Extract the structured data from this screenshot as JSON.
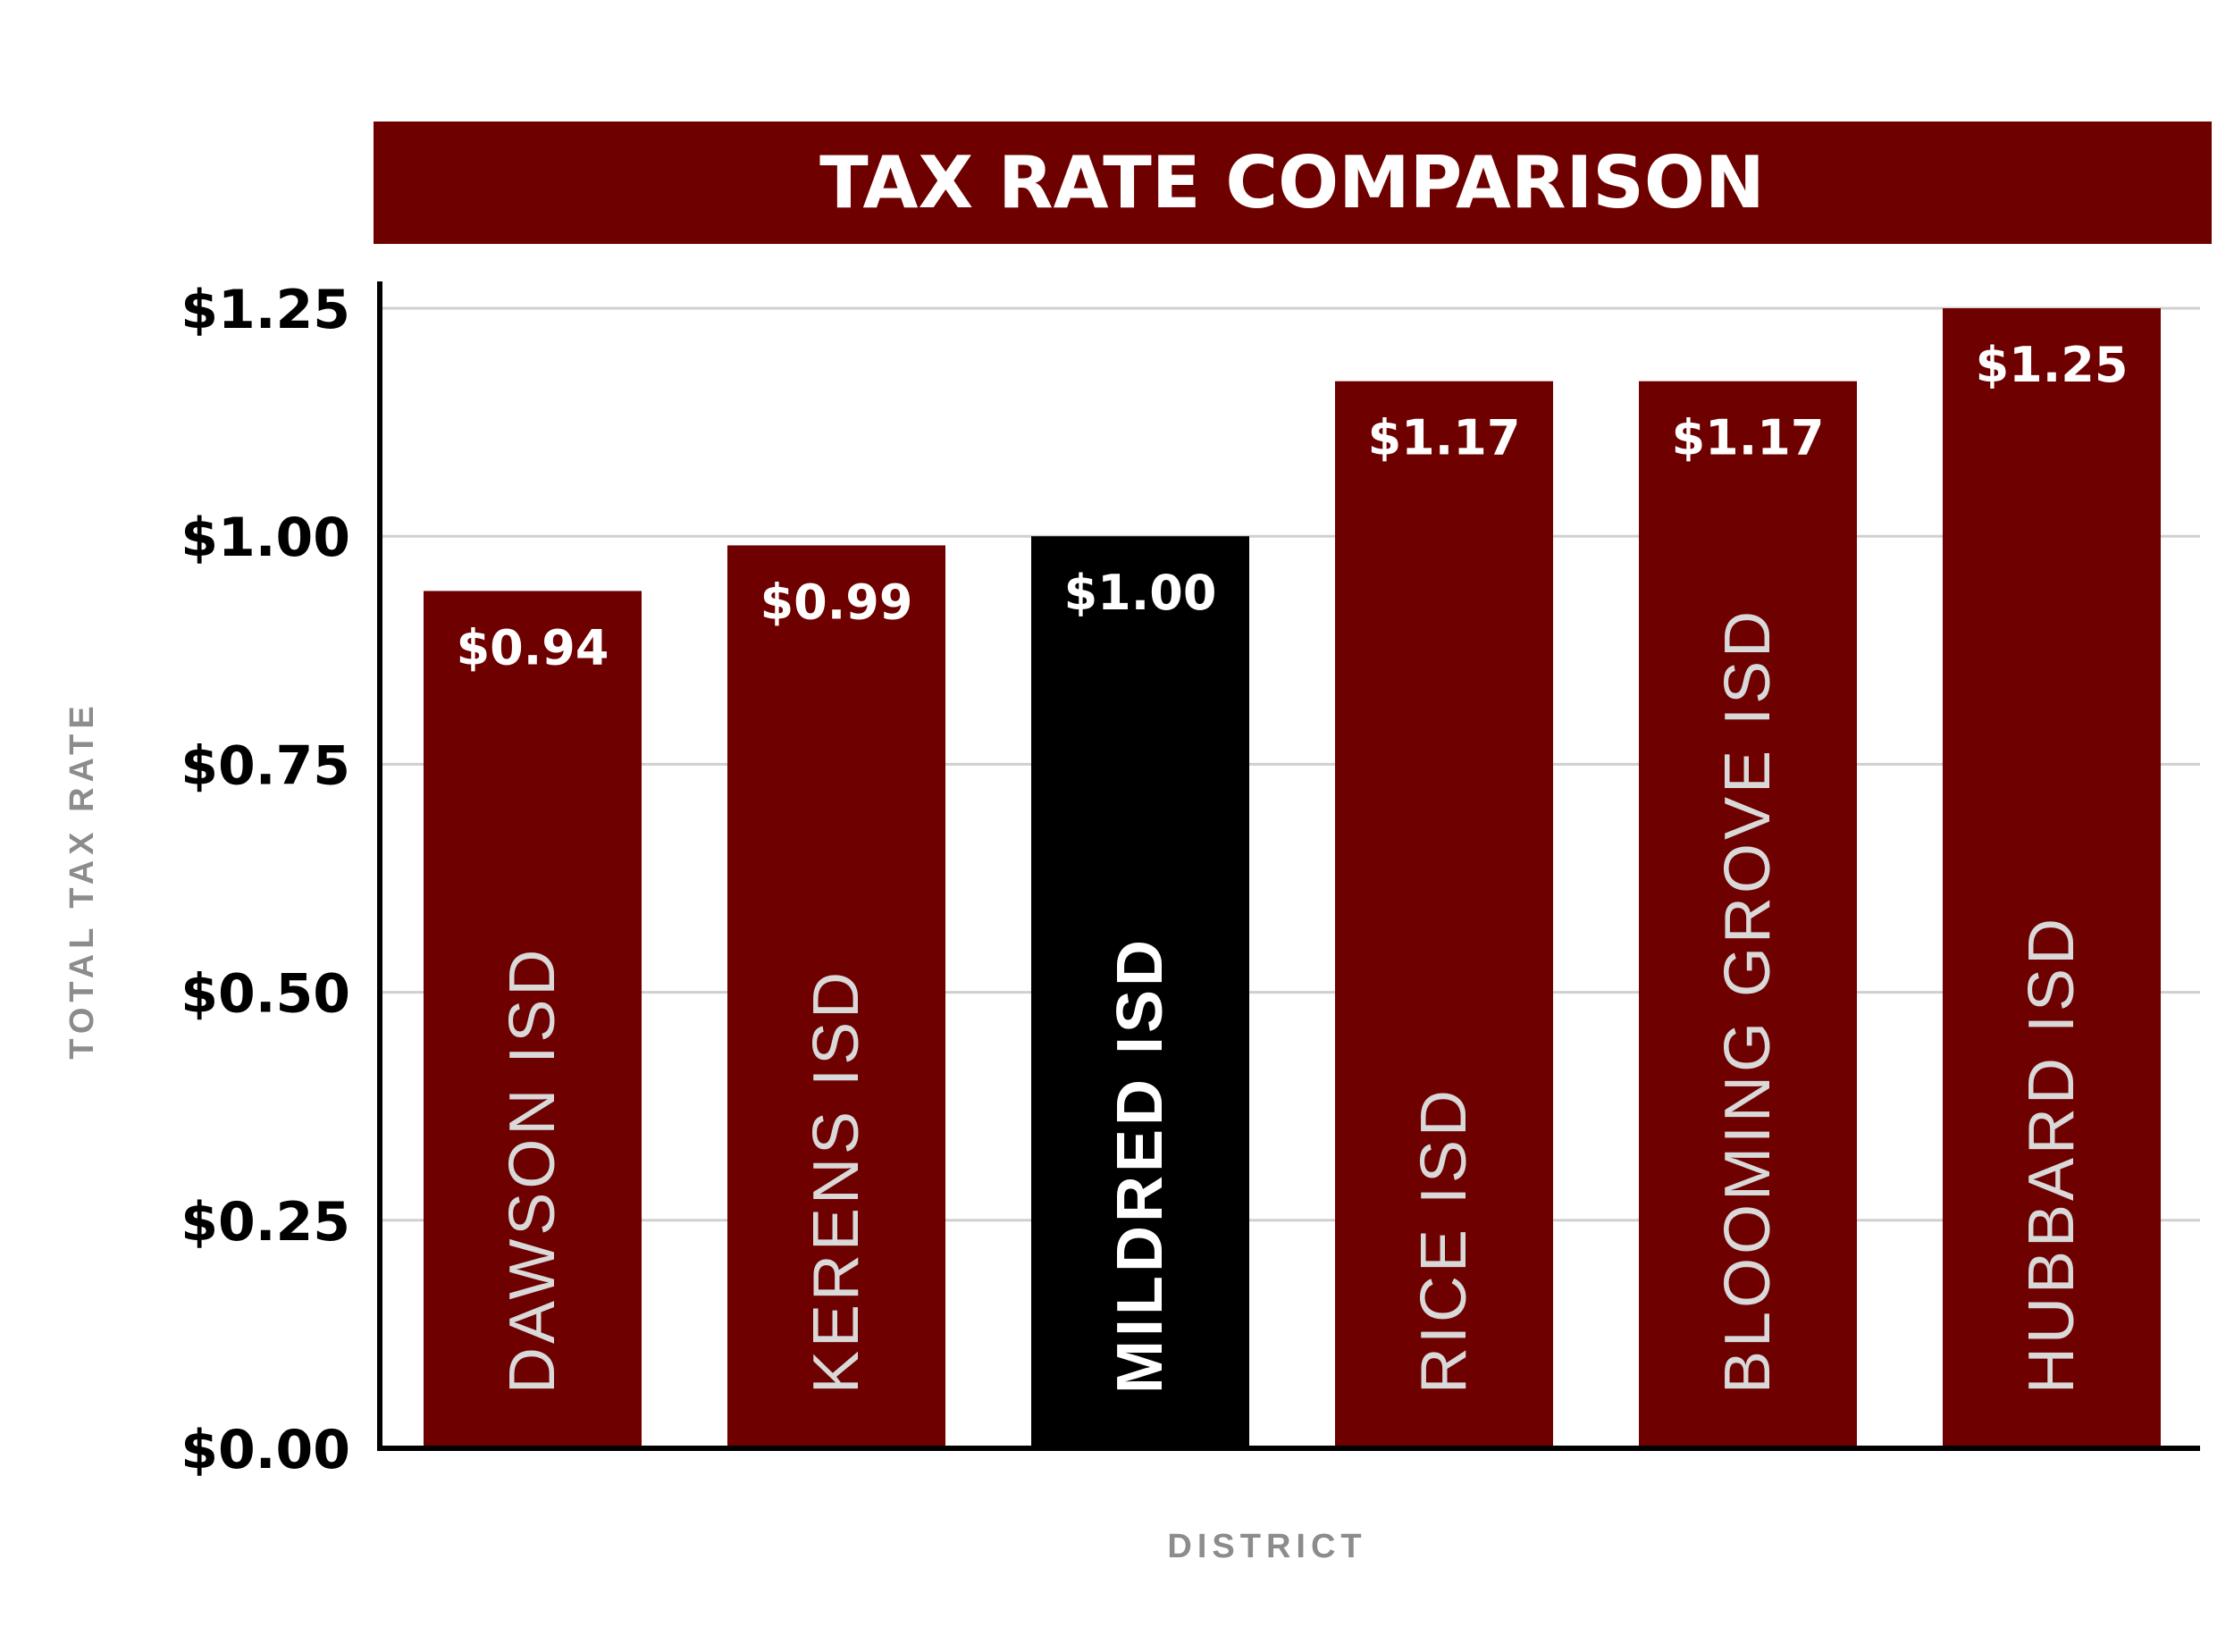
{
  "chart_data": {
    "type": "bar",
    "title": "TAX RATE COMPARISON",
    "xlabel": "DISTRICT",
    "ylabel": "TOTAL TAX RATE",
    "categories": [
      "DAWSON ISD",
      "KERENS ISD",
      "MILDRED ISD",
      "RICE ISD",
      "BLOOMING GROVE ISD",
      "HUBBARD ISD"
    ],
    "values": [
      0.94,
      0.99,
      1.0,
      1.17,
      1.17,
      1.25
    ],
    "value_labels": [
      "$0.94",
      "$0.99",
      "$1.00",
      "$1.17",
      "$1.17",
      "$1.25"
    ],
    "highlight_index": 2,
    "ylim": [
      0,
      1.25
    ],
    "yticks": [
      0,
      0.25,
      0.5,
      0.75,
      1.0,
      1.25
    ],
    "ytick_labels": [
      "$0.00",
      "$0.25",
      "$0.50",
      "$0.75",
      "$1.00",
      "$1.25"
    ],
    "grid": true,
    "legend": "none"
  },
  "colors": {
    "bar": "#6e0000",
    "highlight_bar": "#000000",
    "title_band": "#6e0000",
    "title_text": "#ffffff",
    "value_text": "#ffffff",
    "category_text": "#d9d9d9",
    "highlight_category_text": "#ffffff",
    "tick_text": "#000000",
    "axis_title_text": "#8c8c8c",
    "axis_line": "#000000",
    "grid": "#d0d0d0"
  }
}
